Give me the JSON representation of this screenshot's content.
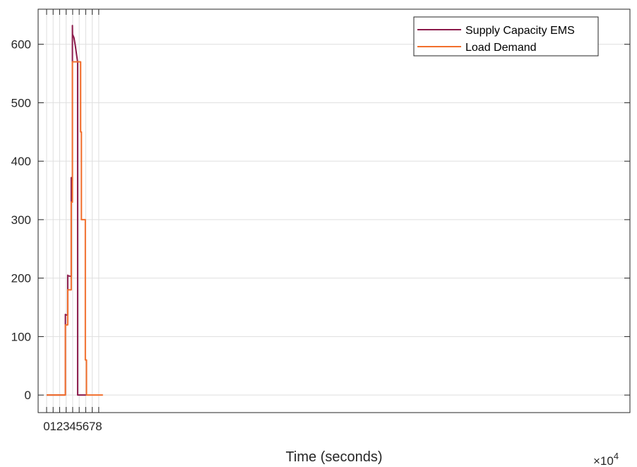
{
  "chart_data": {
    "type": "line",
    "title": "",
    "xlabel": "Time (seconds)",
    "ylabel": "",
    "x_exponent_label": {
      "base": "×10",
      "power": "4"
    },
    "xlim": [
      -1.3,
      89.5
    ],
    "ylim": [
      -30,
      660
    ],
    "x_unit_scale": 10000,
    "xticks": [
      0,
      1,
      2,
      3,
      4,
      5,
      6,
      7,
      8
    ],
    "yticks": [
      0,
      100,
      200,
      300,
      400,
      500,
      600
    ],
    "xtick_labels": [
      "0",
      "1",
      "2",
      "3",
      "4",
      "5",
      "6",
      "7",
      "8"
    ],
    "ytick_labels": [
      "0",
      "100",
      "200",
      "300",
      "400",
      "500",
      "600"
    ],
    "grid": true,
    "legend_position": "top-right",
    "colors": {
      "background": "#ffffff",
      "axis": "#262626",
      "grid": "#dfdfdf"
    },
    "series": [
      {
        "name": "Supply Capacity EMS",
        "color": "#8b1a4a",
        "x": [
          0,
          28800,
          28800,
          29000,
          32400,
          32400,
          32600,
          37800,
          37800,
          38000,
          39600,
          39600,
          39800,
          42000,
          44000,
          46000,
          47400,
          47600,
          47600,
          61200
        ],
        "y": [
          0,
          0,
          138,
          137,
          137,
          205,
          204,
          203,
          372,
          367,
          366,
          632,
          617,
          611,
          598,
          582,
          571,
          570,
          0,
          0
        ]
      },
      {
        "name": "Load Demand",
        "color": "#f26f2c",
        "x": [
          0,
          28800,
          28800,
          32400,
          32400,
          37800,
          37800,
          39600,
          39600,
          52200,
          52200,
          53400,
          53400,
          59400,
          59400,
          61200,
          61200,
          86400
        ],
        "y": [
          0,
          0,
          120,
          120,
          180,
          180,
          330,
          330,
          570,
          570,
          450,
          450,
          300,
          300,
          60,
          60,
          0,
          0
        ]
      }
    ]
  }
}
